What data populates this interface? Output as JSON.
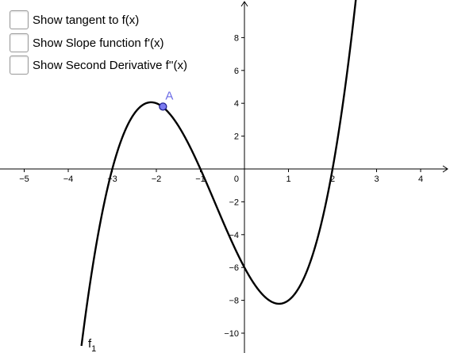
{
  "checkboxes": [
    {
      "label": "Show tangent to f(x)",
      "checked": false
    },
    {
      "label": "Show Slope function f'(x)",
      "checked": false
    },
    {
      "label": "Show Second Derivative f''(x)",
      "checked": false
    }
  ],
  "graph": {
    "function_label": "f",
    "function_subscript": "1",
    "point_label": "A",
    "point": {
      "x": -1.85,
      "y": 3.8
    },
    "x_ticks": [
      {
        "value": -5,
        "label": "−5"
      },
      {
        "value": -4,
        "label": "−4"
      },
      {
        "value": -3,
        "label": "−3"
      },
      {
        "value": -2,
        "label": "−2"
      },
      {
        "value": -1,
        "label": "−1"
      },
      {
        "value": 1,
        "label": "1"
      },
      {
        "value": 2,
        "label": "2"
      },
      {
        "value": 3,
        "label": "3"
      },
      {
        "value": 4,
        "label": "4"
      }
    ],
    "y_ticks": [
      {
        "value": 8,
        "label": "8"
      },
      {
        "value": 6,
        "label": "6"
      },
      {
        "value": 4,
        "label": "4"
      },
      {
        "value": 2,
        "label": "2"
      },
      {
        "value": -2,
        "label": "−2"
      },
      {
        "value": -4,
        "label": "−4"
      },
      {
        "value": -6,
        "label": "−6"
      },
      {
        "value": -8,
        "label": "−8"
      },
      {
        "value": -10,
        "label": "−10"
      }
    ],
    "origin_label": "0",
    "colors": {
      "curve": "#000000",
      "axis": "#000000",
      "point_fill": "#7b7bf0",
      "point_stroke": "#1f1f8f",
      "point_label": "#6a6ae6"
    }
  }
}
